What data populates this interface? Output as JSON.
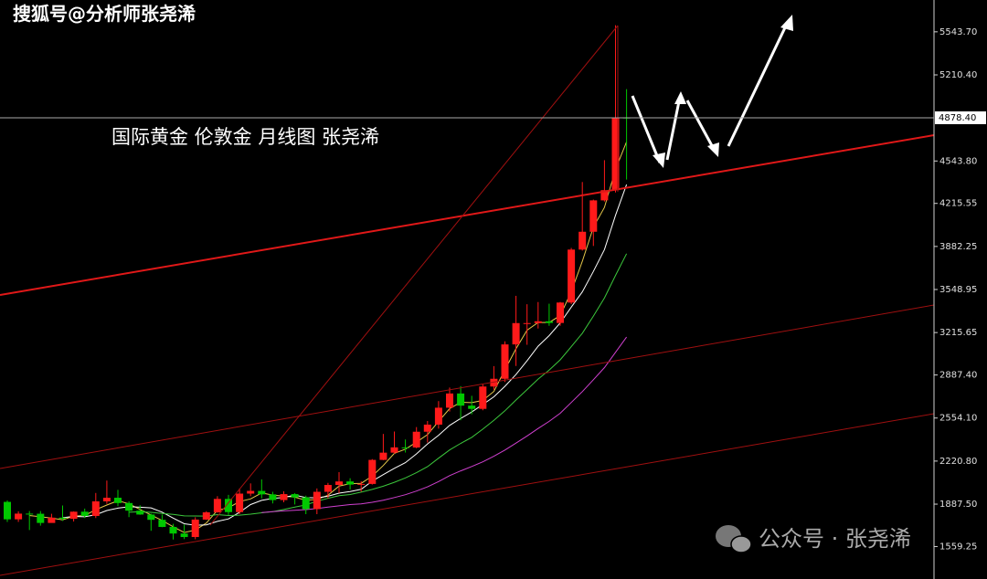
{
  "watermark": "搜狐号@分析师张尧浠",
  "footer": "公众号 · 张尧浠",
  "chart_data": {
    "type": "candlestick",
    "title": "国际黄金 伦敦金  月线图 张尧浠",
    "open": [
      1905,
      1770,
      1814,
      1813,
      1742,
      1783,
      1774,
      1829,
      1796,
      1909,
      1937,
      1896,
      1837,
      1807,
      1766,
      1711,
      1660,
      1633,
      1768,
      1824,
      1928,
      1826,
      1969,
      1990,
      1963,
      1919,
      1965,
      1940,
      1849,
      1983,
      2036,
      2063,
      2039,
      2044,
      2230,
      2286,
      2327,
      2326,
      2448,
      2503,
      2634,
      2744,
      2650,
      2625,
      2798,
      2858,
      3124,
      3289,
      3289,
      3303,
      3290,
      3448,
      3858,
      3996,
      4239,
      4318,
      4880
    ],
    "high": [
      1916,
      1832,
      1834,
      1834,
      1813,
      1877,
      1831,
      1853,
      1974,
      2070,
      1998,
      1909,
      1879,
      1814,
      1807,
      1735,
      1729,
      1786,
      1833,
      1949,
      1959,
      2009,
      2048,
      2079,
      1983,
      1987,
      1973,
      1953,
      2009,
      2052,
      2135,
      2088,
      2065,
      2236,
      2431,
      2450,
      2388,
      2484,
      2531,
      2685,
      2790,
      2801,
      2726,
      2817,
      2956,
      3148,
      3500,
      3435,
      3452,
      3439,
      3453,
      3871,
      4381,
      4245,
      4550,
      5595,
      5100
    ],
    "low": [
      1750,
      1750,
      1687,
      1721,
      1746,
      1758,
      1753,
      1780,
      1780,
      1890,
      1872,
      1787,
      1805,
      1681,
      1709,
      1614,
      1617,
      1616,
      1765,
      1822,
      1804,
      1810,
      1949,
      1932,
      1893,
      1902,
      1885,
      1810,
      1810,
      1932,
      1973,
      2001,
      1984,
      2039,
      2228,
      2277,
      2287,
      2320,
      2364,
      2472,
      2604,
      2537,
      2583,
      2614,
      2773,
      2833,
      2957,
      3121,
      3247,
      3268,
      3268,
      3436,
      3850,
      3886,
      4230,
      4300,
      4400
    ],
    "close": [
      1770,
      1814,
      1813,
      1742,
      1783,
      1774,
      1829,
      1796,
      1909,
      1937,
      1896,
      1837,
      1807,
      1766,
      1711,
      1660,
      1633,
      1768,
      1824,
      1928,
      1826,
      1969,
      1990,
      1963,
      1919,
      1965,
      1940,
      1849,
      1983,
      2036,
      2063,
      2039,
      2044,
      2230,
      2286,
      2327,
      2326,
      2448,
      2503,
      2634,
      2744,
      2650,
      2625,
      2798,
      2858,
      3124,
      3289,
      3289,
      3303,
      3290,
      3448,
      3858,
      3996,
      4239,
      4318,
      4880,
      4878.4
    ],
    "up_color": "#ff1a1a",
    "down_color": "#00c800",
    "moving_averages": [
      {
        "period": 3,
        "color": "#e6c84a"
      },
      {
        "period": 6,
        "color": "#ffffff"
      },
      {
        "period": 12,
        "color": "#3cc83c"
      },
      {
        "period": 24,
        "color": "#d040d0"
      }
    ],
    "ylim": [
      1308,
      5790
    ],
    "yticks": [
      {
        "value": 5543.7,
        "label": "5543.70"
      },
      {
        "value": 5210.4,
        "label": "5210.40"
      },
      {
        "value": 4543.8,
        "label": "4543.80"
      },
      4215.55,
      3882.25,
      3548.95,
      3215.65,
      {
        "value": 2887.4,
        "label": "2887.40"
      },
      {
        "value": 2554.1,
        "label": "2554.10"
      },
      {
        "value": 2220.8,
        "label": "2220.80"
      },
      {
        "value": 1887.5,
        "label": "1887.50"
      },
      1559.25
    ],
    "last_price": {
      "value": 4878.4,
      "label": "4878.40"
    }
  }
}
